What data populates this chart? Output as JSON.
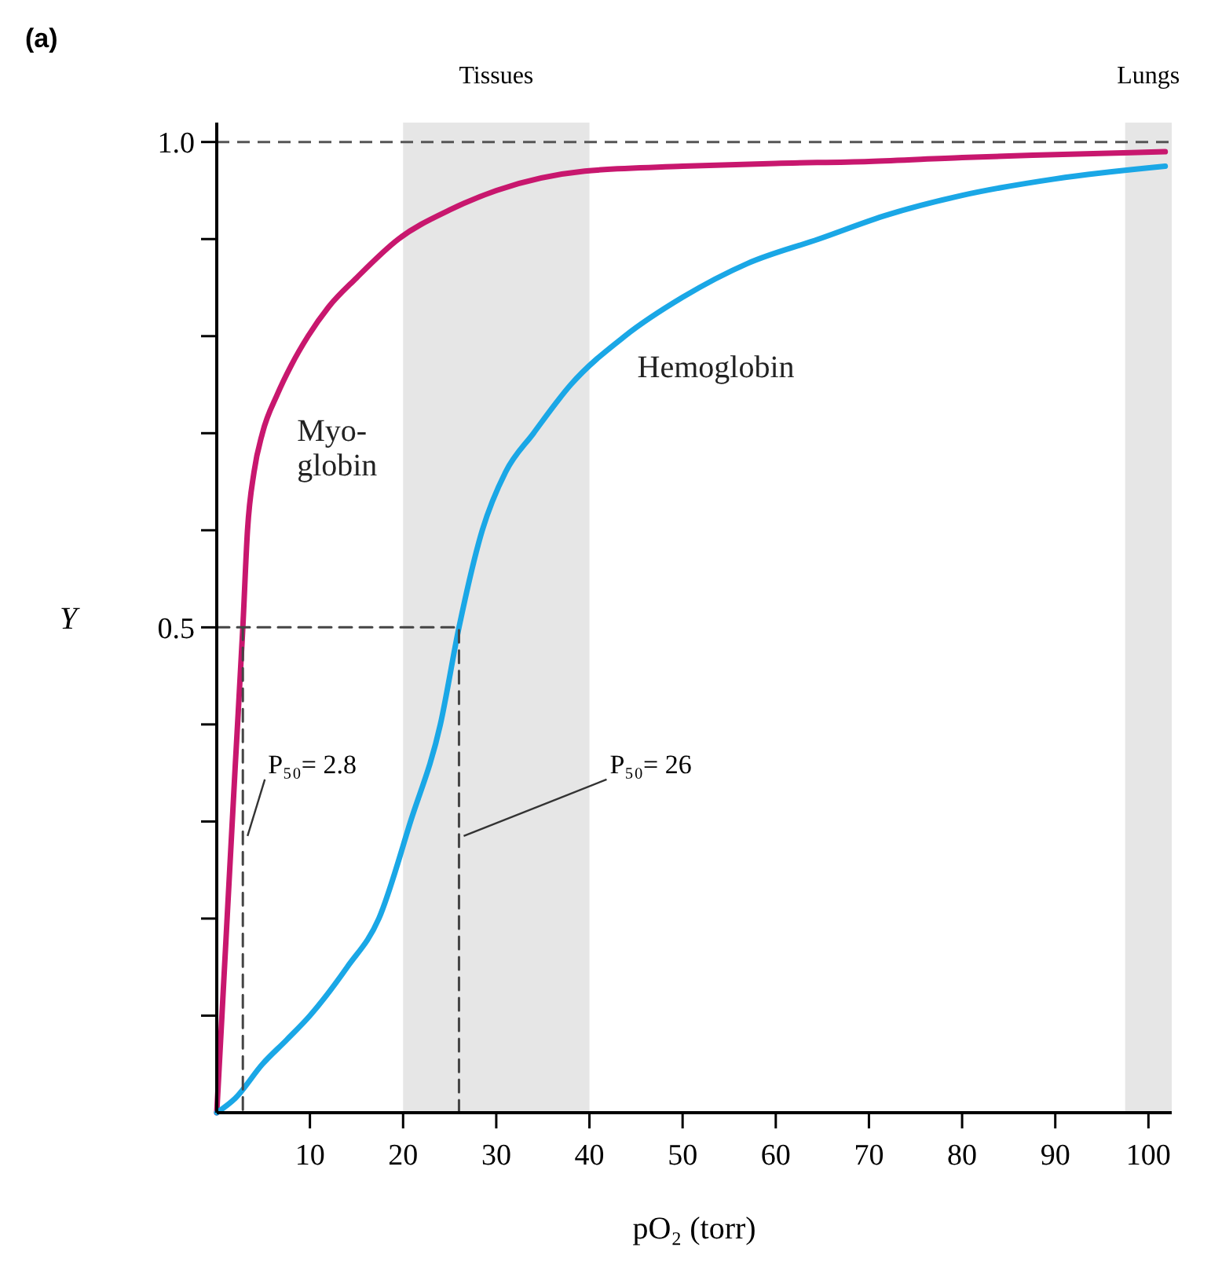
{
  "chart_data": {
    "type": "line",
    "title": "(a)",
    "xlabel": "pO₂ (torr)",
    "ylabel": "Y",
    "xlim": [
      0,
      102.5
    ],
    "ylim": [
      0,
      1.02
    ],
    "xticks": [
      10,
      20,
      30,
      40,
      50,
      60,
      70,
      80,
      90,
      100
    ],
    "yticks": [
      {
        "value": 0.1,
        "label": null
      },
      {
        "value": 0.2,
        "label": null
      },
      {
        "value": 0.3,
        "label": null
      },
      {
        "value": 0.4,
        "label": null
      },
      0.5,
      {
        "value": 0.6,
        "label": null
      },
      {
        "value": 0.7,
        "label": null
      },
      {
        "value": 0.8,
        "label": null
      },
      {
        "value": 0.9,
        "label": null
      },
      {
        "value": 1.0,
        "label": "1.0"
      }
    ],
    "grid": false,
    "legend": false,
    "marker": "none",
    "series": [
      {
        "name": "Myo-\nglobin",
        "color": "#c8176e",
        "x": [
          0,
          1,
          2,
          2.8,
          3.3,
          4,
          4.9,
          6.5,
          8,
          9.8,
          12,
          15,
          19.5,
          25,
          30,
          39.5,
          50,
          60,
          70,
          80,
          90,
          101.8
        ],
        "values": [
          0,
          0.18,
          0.36,
          0.5,
          0.6,
          0.66,
          0.7,
          0.74,
          0.77,
          0.8,
          0.83,
          0.86,
          0.9,
          0.93,
          0.95,
          0.97,
          0.975,
          0.978,
          0.98,
          0.984,
          0.987,
          0.99
        ]
      },
      {
        "name": "Hemoglobin",
        "color": "#1aa7e6",
        "x": [
          0,
          2,
          4.9,
          7.5,
          10,
          14,
          17.4,
          20.8,
          24,
          26,
          28.5,
          31,
          34,
          38,
          43.8,
          50,
          57,
          64.6,
          72,
          80,
          90,
          101.8
        ],
        "values": [
          0,
          0.015,
          0.05,
          0.075,
          0.1,
          0.15,
          0.2,
          0.3,
          0.4,
          0.5,
          0.6,
          0.66,
          0.7,
          0.75,
          0.8,
          0.84,
          0.875,
          0.9,
          0.925,
          0.945,
          0.962,
          0.975
        ]
      },
      {
        "color": "#444444",
        "line_style": "dashed",
        "x": [
          0,
          26,
          26
        ],
        "values": [
          0.5,
          0.5,
          0
        ]
      },
      {
        "color": "#444444",
        "line_style": "dashed",
        "x": [
          2.8,
          2.8
        ],
        "values": [
          0.5,
          0
        ]
      }
    ],
    "ref_lines": [
      {
        "axis": "y",
        "value": 1.0,
        "color": "#555555",
        "line_style": "dashed"
      }
    ],
    "bands": [
      {
        "axis": "x",
        "from": 20,
        "to": 40,
        "label": "Tissues",
        "color": "#e6e6e6"
      },
      {
        "axis": "x",
        "from": 97.5,
        "to": 102.5,
        "label": "Lungs",
        "color": "#e6e6e6"
      }
    ],
    "annotations": [
      {
        "text": "P₅₀= 2.8",
        "x": 2.8,
        "y": 0.285
      },
      {
        "text": "P₅₀= 26",
        "x": 26,
        "y": 0.285
      }
    ]
  }
}
